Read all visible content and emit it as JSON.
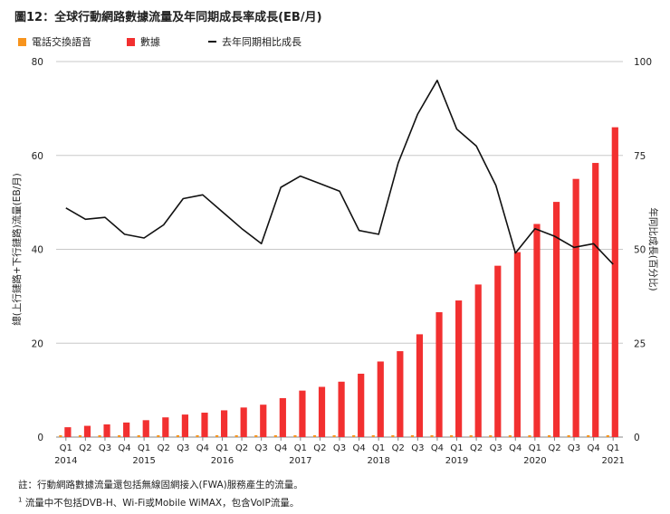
{
  "title": "圖12：全球行動網路數據流量及年同期成長率成長(EB/月)",
  "footnote1": "註：行動網路數據流量還包括無線固網接入(FWA)服務產生的流量。",
  "footnote2_mark": "1",
  "footnote2": "流量中不包括DVB-H、Wi-Fi或Mobile WiMAX，包含VoIP流量。",
  "colors": {
    "voice": "#f7941d",
    "data": "#f23030",
    "line": "#111111",
    "grid": "#c8c8c8"
  },
  "chart_data": {
    "type": "bar",
    "categories": [
      "Q1 2014",
      "Q2 2014",
      "Q3 2014",
      "Q4 2014",
      "Q1 2015",
      "Q2 2015",
      "Q3 2015",
      "Q4 2015",
      "Q1 2016",
      "Q2 2016",
      "Q3 2016",
      "Q4 2016",
      "Q1 2017",
      "Q2 2017",
      "Q3 2017",
      "Q4 2017",
      "Q1 2018",
      "Q2 2018",
      "Q3 2018",
      "Q4 2018",
      "Q1 2019",
      "Q2 2019",
      "Q3 2019",
      "Q4 2019",
      "Q1 2020",
      "Q2 2020",
      "Q3 2020",
      "Q4 2020",
      "Q1 2021"
    ],
    "x_tick_labels": [
      "Q1",
      "Q2",
      "Q3",
      "Q4",
      "Q1",
      "Q2",
      "Q3",
      "Q4",
      "Q1",
      "Q2",
      "Q3",
      "Q4",
      "Q1",
      "Q2",
      "Q3",
      "Q4",
      "Q1",
      "Q2",
      "Q3",
      "Q4",
      "Q1",
      "Q2",
      "Q3",
      "Q4",
      "Q1",
      "Q2",
      "Q3",
      "Q4",
      "Q1"
    ],
    "x_year_labels": [
      {
        "index": 0,
        "label": "2014"
      },
      {
        "index": 4,
        "label": "2015"
      },
      {
        "index": 8,
        "label": "2016"
      },
      {
        "index": 12,
        "label": "2017"
      },
      {
        "index": 16,
        "label": "2018"
      },
      {
        "index": 20,
        "label": "2019"
      },
      {
        "index": 24,
        "label": "2020"
      },
      {
        "index": 28,
        "label": "2021"
      }
    ],
    "series": [
      {
        "name": "電話交換語音",
        "axis": "left",
        "type": "bar",
        "values": [
          0.4,
          0.4,
          0.4,
          0.4,
          0.4,
          0.4,
          0.4,
          0.4,
          0.4,
          0.4,
          0.4,
          0.4,
          0.4,
          0.4,
          0.4,
          0.4,
          0.4,
          0.4,
          0.4,
          0.4,
          0.4,
          0.4,
          0.4,
          0.4,
          0.4,
          0.4,
          0.4,
          0.4,
          0.4
        ]
      },
      {
        "name": "數據",
        "axis": "left",
        "type": "bar",
        "values": [
          2.1,
          2.4,
          2.7,
          3.1,
          3.6,
          4.2,
          4.8,
          5.2,
          5.7,
          6.3,
          6.9,
          8.3,
          9.9,
          10.7,
          11.8,
          13.5,
          16.1,
          18.3,
          21.9,
          26.6,
          29.1,
          32.5,
          36.5,
          39.4,
          45.4,
          50.1,
          55.0,
          58.4,
          66.0
        ]
      },
      {
        "name": "去年同期相比成長",
        "axis": "right",
        "type": "line",
        "values": [
          61,
          58,
          58.5,
          54,
          53,
          56.5,
          63.5,
          64.5,
          60,
          55.5,
          51.5,
          66.5,
          69.5,
          67.5,
          65.5,
          55,
          54,
          73,
          86,
          95,
          82,
          77.5,
          67,
          49,
          55.5,
          53.5,
          50.5,
          51.5,
          46
        ]
      }
    ],
    "y_left": {
      "label": "總(上行鏈路+下行鏈路)流量(EB/月)",
      "range": [
        0,
        80
      ],
      "ticks": [
        0,
        20,
        40,
        60,
        80
      ]
    },
    "y_right": {
      "label": "年同比成長(百分比)",
      "range": [
        0,
        100
      ],
      "ticks": [
        0,
        25,
        50,
        75,
        100
      ]
    },
    "grid": true,
    "legend_position": "top"
  }
}
